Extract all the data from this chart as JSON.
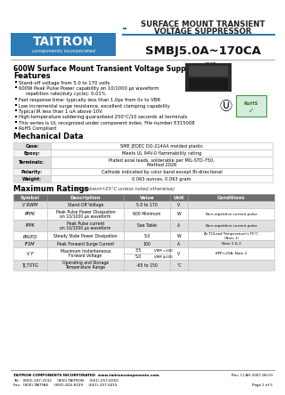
{
  "bg_color": "#ffffff",
  "header_blue": "#2c7bb6",
  "logo_bg": "#2c7bb6",
  "logo_text": "TAITRON",
  "logo_sub": "components incorporated",
  "title_line1": "SURFACE MOUNT TRANSIENT",
  "title_line2": "VOLTAGE SUPPRESSOR",
  "part_number": "SMBJ5.0A~170CA",
  "section_title": "600W Surface Mount Transient Voltage Suppressor",
  "smb_label": "SMB",
  "features_title": "Features",
  "features": [
    "Stand-off voltage from 5.0 to 170 volts",
    "600W Peak Pulse Power capability on 10/1000 μs waveform",
    "repetition rate(duty cycle): 0.01%",
    "Fast response time: typically less than 1.0ps from 0v to VBR",
    "Low incremental surge resistance, excellent clamping capability",
    "Typical IR less than 1 uA above 10V",
    "High temperature soldering guaranteed 250°C/10 seconds at terminals",
    "This series is UL recognized under component index. File number E315008",
    "RoHS Compliant"
  ],
  "features_indent": [
    false,
    false,
    true,
    false,
    false,
    false,
    false,
    false,
    false
  ],
  "mech_title": "Mechanical Data",
  "mech_headers": [
    "Case:",
    "Epoxy:",
    "Terminals:",
    "Polarity:",
    "Weight:"
  ],
  "mech_values": [
    "SME JEDEC DO-214AA molded plastic",
    "Meets UL 94V-0 flammability rating",
    "Plated axial leads, solderable per MIL-STD-750,\nMethod 2026",
    "Cathode indicated by color band except Bi-directional",
    "0.063 ounces, 0.063 gram"
  ],
  "max_ratings_title": "Maximum Ratings",
  "max_ratings_subtitle": " (T Ambient=25°C unless noted otherwise)",
  "table_headers": [
    "Symbol",
    "Description",
    "Value",
    "Unit",
    "Conditions"
  ],
  "table_rows": [
    [
      "V RWM",
      "Stand-Off Voltage",
      "5.0 to 170",
      "V",
      ""
    ],
    [
      "PPPK",
      "Peak Pulse Power Dissipation\non 10/1000 μs waveform",
      "600 Minimum",
      "W",
      "Non-repetitive current pulse"
    ],
    [
      "IPPK",
      "Peak Pulse current\non 10/1000 μs waveform",
      "See Table",
      "A",
      "Non-repetitive current pulse"
    ],
    [
      "PAVEQ",
      "Steady State Power Dissipation",
      "5.0",
      "W",
      "At TL(Lead Temperature)=75°C\n(Note 1)"
    ],
    [
      "IFSM",
      "Peak Forward Surge Current",
      "100",
      "A",
      "Note 1 & 2"
    ],
    [
      "V F",
      "Maximum Instantaneous\nForward Voltage",
      "3.5|5.0",
      "V",
      "8PP=25A, Note 2"
    ],
    [
      "TJ,TSTG",
      "Operating and Storage\nTemperature Range",
      "-65 to 150",
      "°C",
      ""
    ]
  ],
  "footer_company": "TAITRON COMPONENTS INCORPORATED  www.taitroncomponents.com",
  "footer_rev": "Rev. C| AH 2007-08-01",
  "footer_page": "Page 1 of 5",
  "footer_tel": "Tel:   (800)-247-2232     (800)-TAITRON     (661)-257-6060",
  "footer_fax": "Fax:  (800)-TAITFAX     (800)-824-8329     (661)-257-6415",
  "row_alt_color": "#e0e0e0",
  "table_header_bg": "#6d6d6d"
}
